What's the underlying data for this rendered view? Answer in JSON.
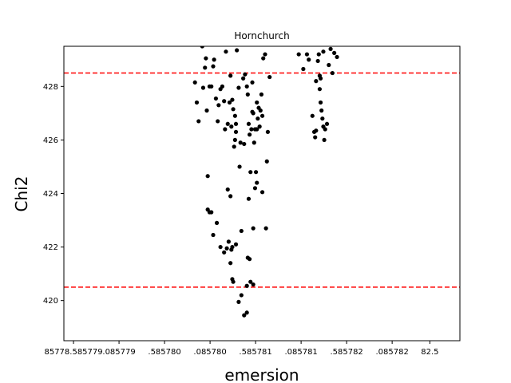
{
  "chart_data": {
    "type": "scatter",
    "title": "Hornchurch",
    "xlabel": "emersion",
    "ylabel": "Chi2",
    "xlim": [
      85778.48,
      85782.83
    ],
    "ylim": [
      418.5,
      429.5
    ],
    "x_ticks": [
      85778.585779,
      85779.085779,
      85779.58578,
      85780.08578,
      85780.585781,
      85781.085781,
      85781.585782,
      85782.085782,
      85782.5
    ],
    "x_tick_labels": [
      "85778.585779",
      ".085779",
      ".585780",
      ".085780",
      ".585781",
      ".085781",
      ".585782",
      ".085782",
      "82.5"
    ],
    "y_ticks": [
      420,
      422,
      424,
      426,
      428
    ],
    "y_tick_labels": [
      "420",
      "422",
      "424",
      "426",
      "428"
    ],
    "hlines": [
      {
        "y": 428.5,
        "color": "#ff0000",
        "style": "dashed"
      },
      {
        "y": 420.5,
        "color": "#ff0000",
        "style": "dashed"
      }
    ],
    "grid": false,
    "marker_color": "#000000",
    "points": [
      [
        85779.92,
        428.15
      ],
      [
        85779.94,
        427.4
      ],
      [
        85779.96,
        426.7
      ],
      [
        85780.0,
        429.5
      ],
      [
        85780.01,
        427.95
      ],
      [
        85780.03,
        428.7
      ],
      [
        85780.04,
        429.05
      ],
      [
        85780.05,
        427.1
      ],
      [
        85780.06,
        424.65
      ],
      [
        85780.08,
        428.0
      ],
      [
        85780.1,
        428.0
      ],
      [
        85780.12,
        428.75
      ],
      [
        85780.13,
        429.0
      ],
      [
        85780.15,
        427.55
      ],
      [
        85780.17,
        426.7
      ],
      [
        85780.18,
        427.3
      ],
      [
        85780.2,
        427.9
      ],
      [
        85780.22,
        428.0
      ],
      [
        85780.24,
        427.45
      ],
      [
        85780.25,
        426.4
      ],
      [
        85780.26,
        429.3
      ],
      [
        85780.28,
        426.6
      ],
      [
        85780.3,
        427.4
      ],
      [
        85780.31,
        428.4
      ],
      [
        85780.32,
        426.5
      ],
      [
        85780.33,
        427.5
      ],
      [
        85780.34,
        427.15
      ],
      [
        85780.35,
        425.75
      ],
      [
        85780.36,
        426.0
      ],
      [
        85780.37,
        426.6
      ],
      [
        85780.38,
        429.35
      ],
      [
        85780.4,
        427.95
      ],
      [
        85780.41,
        425.0
      ],
      [
        85780.42,
        425.9
      ],
      [
        85780.45,
        428.3
      ],
      [
        85780.46,
        425.85
      ],
      [
        85780.47,
        428.45
      ],
      [
        85780.49,
        428.0
      ],
      [
        85780.5,
        427.7
      ],
      [
        85780.51,
        426.6
      ],
      [
        85780.52,
        426.2
      ],
      [
        85780.53,
        424.8
      ],
      [
        85780.54,
        426.4
      ],
      [
        85780.55,
        428.15
      ],
      [
        85780.56,
        427.0
      ],
      [
        85780.57,
        425.9
      ],
      [
        85780.58,
        426.4
      ],
      [
        85780.59,
        424.8
      ],
      [
        85780.6,
        427.4
      ],
      [
        85780.61,
        426.8
      ],
      [
        85780.62,
        427.2
      ],
      [
        85780.63,
        426.5
      ],
      [
        85780.64,
        427.1
      ],
      [
        85780.65,
        427.7
      ],
      [
        85780.66,
        426.9
      ],
      [
        85780.67,
        429.05
      ],
      [
        85780.69,
        429.2
      ],
      [
        85780.72,
        426.3
      ],
      [
        85780.74,
        428.35
      ],
      [
        85780.71,
        425.2
      ],
      [
        85780.36,
        426.9
      ],
      [
        85780.37,
        426.3
      ],
      [
        85780.55,
        427.05
      ],
      [
        85780.6,
        426.4
      ],
      [
        85780.6,
        424.4
      ],
      [
        85780.58,
        424.2
      ],
      [
        85780.66,
        424.05
      ],
      [
        85780.51,
        423.8
      ],
      [
        85780.28,
        424.15
      ],
      [
        85780.31,
        423.9
      ],
      [
        85780.06,
        423.4
      ],
      [
        85780.08,
        423.3
      ],
      [
        85780.1,
        423.3
      ],
      [
        85780.16,
        422.9
      ],
      [
        85780.43,
        422.6
      ],
      [
        85780.56,
        422.7
      ],
      [
        85780.7,
        422.7
      ],
      [
        85780.12,
        422.45
      ],
      [
        85780.2,
        422.0
      ],
      [
        85780.24,
        421.8
      ],
      [
        85780.27,
        421.95
      ],
      [
        85780.29,
        422.2
      ],
      [
        85780.32,
        421.9
      ],
      [
        85780.33,
        422.0
      ],
      [
        85780.31,
        421.4
      ],
      [
        85780.37,
        422.1
      ],
      [
        85780.5,
        421.6
      ],
      [
        85780.52,
        421.55
      ],
      [
        85780.33,
        420.8
      ],
      [
        85780.34,
        420.7
      ],
      [
        85780.49,
        420.55
      ],
      [
        85780.53,
        420.7
      ],
      [
        85780.56,
        420.6
      ],
      [
        85780.4,
        419.95
      ],
      [
        85780.43,
        420.2
      ],
      [
        85780.46,
        419.45
      ],
      [
        85780.49,
        419.55
      ],
      [
        85781.06,
        429.2
      ],
      [
        85781.11,
        428.65
      ],
      [
        85781.15,
        429.2
      ],
      [
        85781.17,
        429.0
      ],
      [
        85781.21,
        426.9
      ],
      [
        85781.23,
        426.3
      ],
      [
        85781.24,
        426.1
      ],
      [
        85781.25,
        428.2
      ],
      [
        85781.27,
        428.95
      ],
      [
        85781.28,
        429.2
      ],
      [
        85781.29,
        428.4
      ],
      [
        85781.3,
        428.3
      ],
      [
        85781.29,
        427.9
      ],
      [
        85781.3,
        427.4
      ],
      [
        85781.31,
        427.1
      ],
      [
        85781.32,
        426.8
      ],
      [
        85781.33,
        426.5
      ],
      [
        85781.34,
        426.0
      ],
      [
        85781.35,
        426.4
      ],
      [
        85781.37,
        426.6
      ],
      [
        85781.39,
        428.8
      ],
      [
        85781.41,
        429.4
      ],
      [
        85781.43,
        428.5
      ],
      [
        85781.45,
        429.25
      ],
      [
        85781.48,
        429.1
      ],
      [
        85781.33,
        429.3
      ],
      [
        85781.25,
        426.35
      ]
    ]
  }
}
